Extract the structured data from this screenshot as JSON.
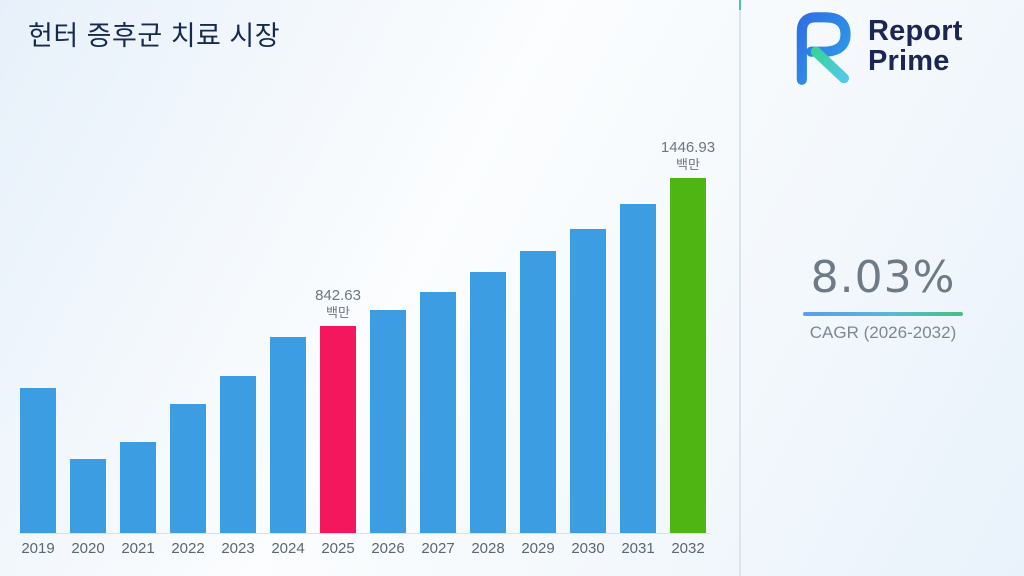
{
  "header": {
    "title": "헌터 증후군 치료 시장"
  },
  "brand": {
    "name_line1": "Report",
    "name_line2": "Prime"
  },
  "kpi": {
    "value": "8.03%",
    "label": "CAGR (2026-2032)"
  },
  "chart_data": {
    "type": "bar",
    "title": "헌터 증후군 치료 시장",
    "unit": "백만",
    "categories": [
      "2019",
      "2020",
      "2021",
      "2022",
      "2023",
      "2024",
      "2025",
      "2026",
      "2027",
      "2028",
      "2029",
      "2030",
      "2031",
      "2032"
    ],
    "values": [
      590,
      300,
      370,
      525,
      640,
      800,
      842.63,
      910.29,
      983.39,
      1062.35,
      1147.66,
      1239.82,
      1339.37,
      1446.93
    ],
    "ylim": [
      0,
      1500
    ],
    "grid": false,
    "legend": "none",
    "bar_color": "#3d9de2",
    "highlights": [
      {
        "category": "2025",
        "color": "#f5175d",
        "label": "842.63",
        "unit": "백만"
      },
      {
        "category": "2032",
        "color": "#4fb512",
        "label": "1446.93",
        "unit": "백만"
      }
    ],
    "annotations": [
      "842.63 백만 (2025)",
      "1446.93 백만 (2032)"
    ],
    "cagr": {
      "value": "8.03%",
      "period": "2026-2032"
    }
  },
  "colors": {
    "accent_blue": "#3d9de2",
    "accent_pink": "#f5175d",
    "accent_green": "#4fb512",
    "navy": "#1b2653",
    "gray_text": "#6e7a86"
  }
}
